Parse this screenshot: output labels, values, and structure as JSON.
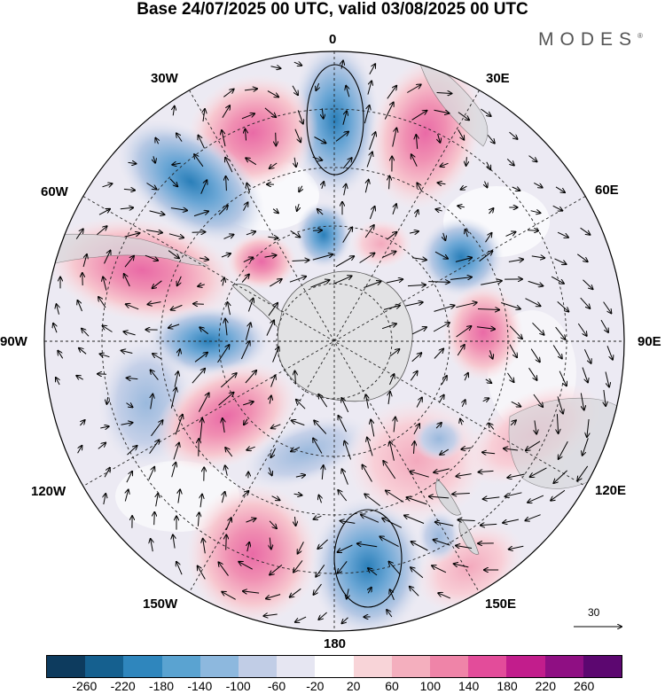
{
  "title": "Base 24/07/2025 00 UTC, valid 03/08/2025 00 UTC",
  "brand": {
    "name": "MODES",
    "mark": "®"
  },
  "map": {
    "projection": "south-polar-stereographic",
    "longitude_labels": {
      "n0": "0",
      "n30e": "30E",
      "n60e": "60E",
      "n90e": "90E",
      "n120e": "120E",
      "n150e": "150E",
      "n180": "180",
      "n150w": "150W",
      "n120w": "120W",
      "n90w": "90W",
      "n60w": "60W",
      "n30w": "30W"
    },
    "anomaly_features": [
      {
        "sign": "negative",
        "value": -180,
        "sector": "0"
      },
      {
        "sign": "positive",
        "value": 140,
        "sector": "20W"
      },
      {
        "sign": "negative",
        "value": -100,
        "sector": "45W"
      },
      {
        "sign": "positive",
        "value": 140,
        "sector": "75W"
      },
      {
        "sign": "positive",
        "value": 120,
        "sector": "25E"
      },
      {
        "sign": "negative",
        "value": -100,
        "sector": "5W-inner"
      },
      {
        "sign": "positive",
        "value": 100,
        "sector": "60W-inner"
      },
      {
        "sign": "negative",
        "value": -100,
        "sector": "55E"
      },
      {
        "sign": "positive",
        "value": 140,
        "sector": "90E"
      },
      {
        "sign": "negative",
        "value": -100,
        "sector": "90W"
      },
      {
        "sign": "positive",
        "value": 140,
        "sector": "120W"
      },
      {
        "sign": "positive",
        "value": 140,
        "sector": "150W"
      },
      {
        "sign": "negative",
        "value": -180,
        "sector": "165E"
      }
    ]
  },
  "vector_scale": {
    "label": "30"
  },
  "colorbar": {
    "colors": [
      "#0d3b5e",
      "#15608f",
      "#2f86bd",
      "#5aa3d1",
      "#8db8de",
      "#c1cde6",
      "#e6e6f2",
      "#ffffff",
      "#f8d4d8",
      "#f4afbe",
      "#ef84a8",
      "#e34c9a",
      "#c21d8c",
      "#8f0f83",
      "#5c0770"
    ],
    "tick_labels": [
      "-260",
      "-220",
      "-180",
      "-140",
      "-100",
      "-60",
      "-20",
      "20",
      "60",
      "100",
      "140",
      "180",
      "220",
      "260"
    ]
  }
}
